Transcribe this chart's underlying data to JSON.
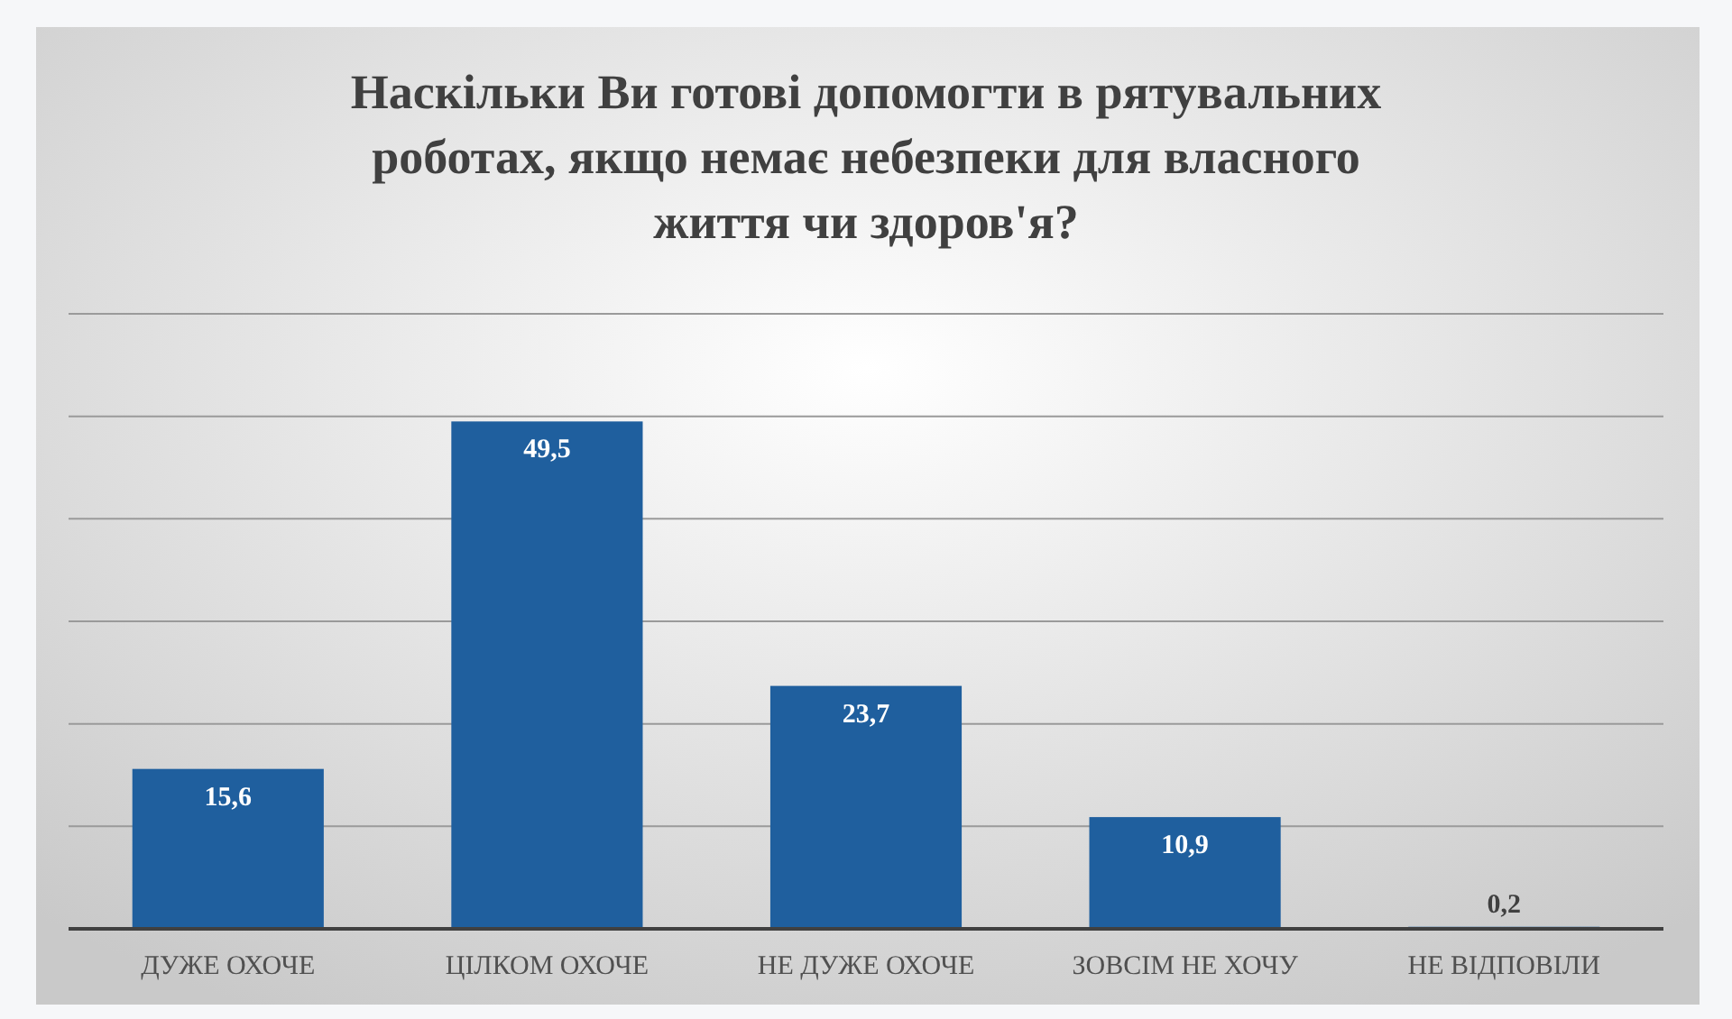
{
  "chart_data": {
    "type": "bar",
    "title": "Наскільки Ви готові допомогти в рятувальних роботах, якщо немає небезпеки для власного життя чи здоров'я?",
    "categories": [
      "ДУЖЕ ОХОЧЕ",
      "ЦІЛКОМ ОХОЧЕ",
      "НЕ ДУЖЕ ОХОЧЕ",
      "ЗОВСІМ НЕ ХОЧУ",
      "НЕ ВІДПОВІЛИ"
    ],
    "values": [
      15.6,
      49.5,
      23.7,
      10.9,
      0.2
    ],
    "value_labels": [
      "15,6",
      "49,5",
      "23,7",
      "10,9",
      "0,2"
    ],
    "color": "#1f5f9e",
    "ylim": [
      0,
      60
    ],
    "yticks": [
      {
        "value": 0,
        "label": null
      },
      {
        "value": 10,
        "label": null
      },
      {
        "value": 20,
        "label": null
      },
      {
        "value": 30,
        "label": null
      },
      {
        "value": 40,
        "label": null
      },
      {
        "value": 50,
        "label": null
      },
      {
        "value": 60,
        "label": null
      }
    ],
    "tick_labels": "x",
    "grid": "y"
  }
}
